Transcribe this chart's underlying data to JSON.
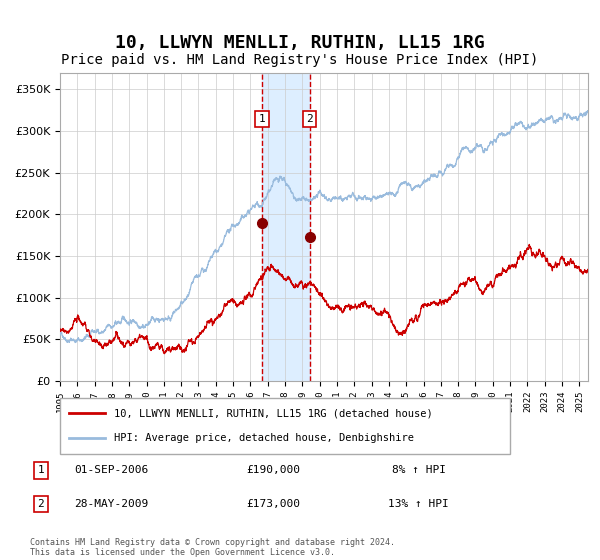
{
  "title": "10, LLWYN MENLLI, RUTHIN, LL15 1RG",
  "subtitle": "Price paid vs. HM Land Registry's House Price Index (HPI)",
  "title_fontsize": 13,
  "subtitle_fontsize": 10,
  "background_color": "#ffffff",
  "plot_bg_color": "#ffffff",
  "grid_color": "#cccccc",
  "red_line_color": "#cc0000",
  "blue_line_color": "#99bbdd",
  "sale1_date": 2006.67,
  "sale1_price": 190000,
  "sale2_date": 2009.42,
  "sale2_price": 173000,
  "shade_start": 2006.67,
  "shade_end": 2009.42,
  "shade_color": "#ddeeff",
  "legend_label_red": "10, LLWYN MENLLI, RUTHIN, LL15 1RG (detached house)",
  "legend_label_blue": "HPI: Average price, detached house, Denbighshire",
  "table_row1": [
    "1",
    "01-SEP-2006",
    "£190,000",
    "8% ↑ HPI"
  ],
  "table_row2": [
    "2",
    "28-MAY-2009",
    "£173,000",
    "13% ↑ HPI"
  ],
  "footer": "Contains HM Land Registry data © Crown copyright and database right 2024.\nThis data is licensed under the Open Government Licence v3.0.",
  "ylim": [
    0,
    370000
  ],
  "xlim_start": 1995.0,
  "xlim_end": 2025.5
}
